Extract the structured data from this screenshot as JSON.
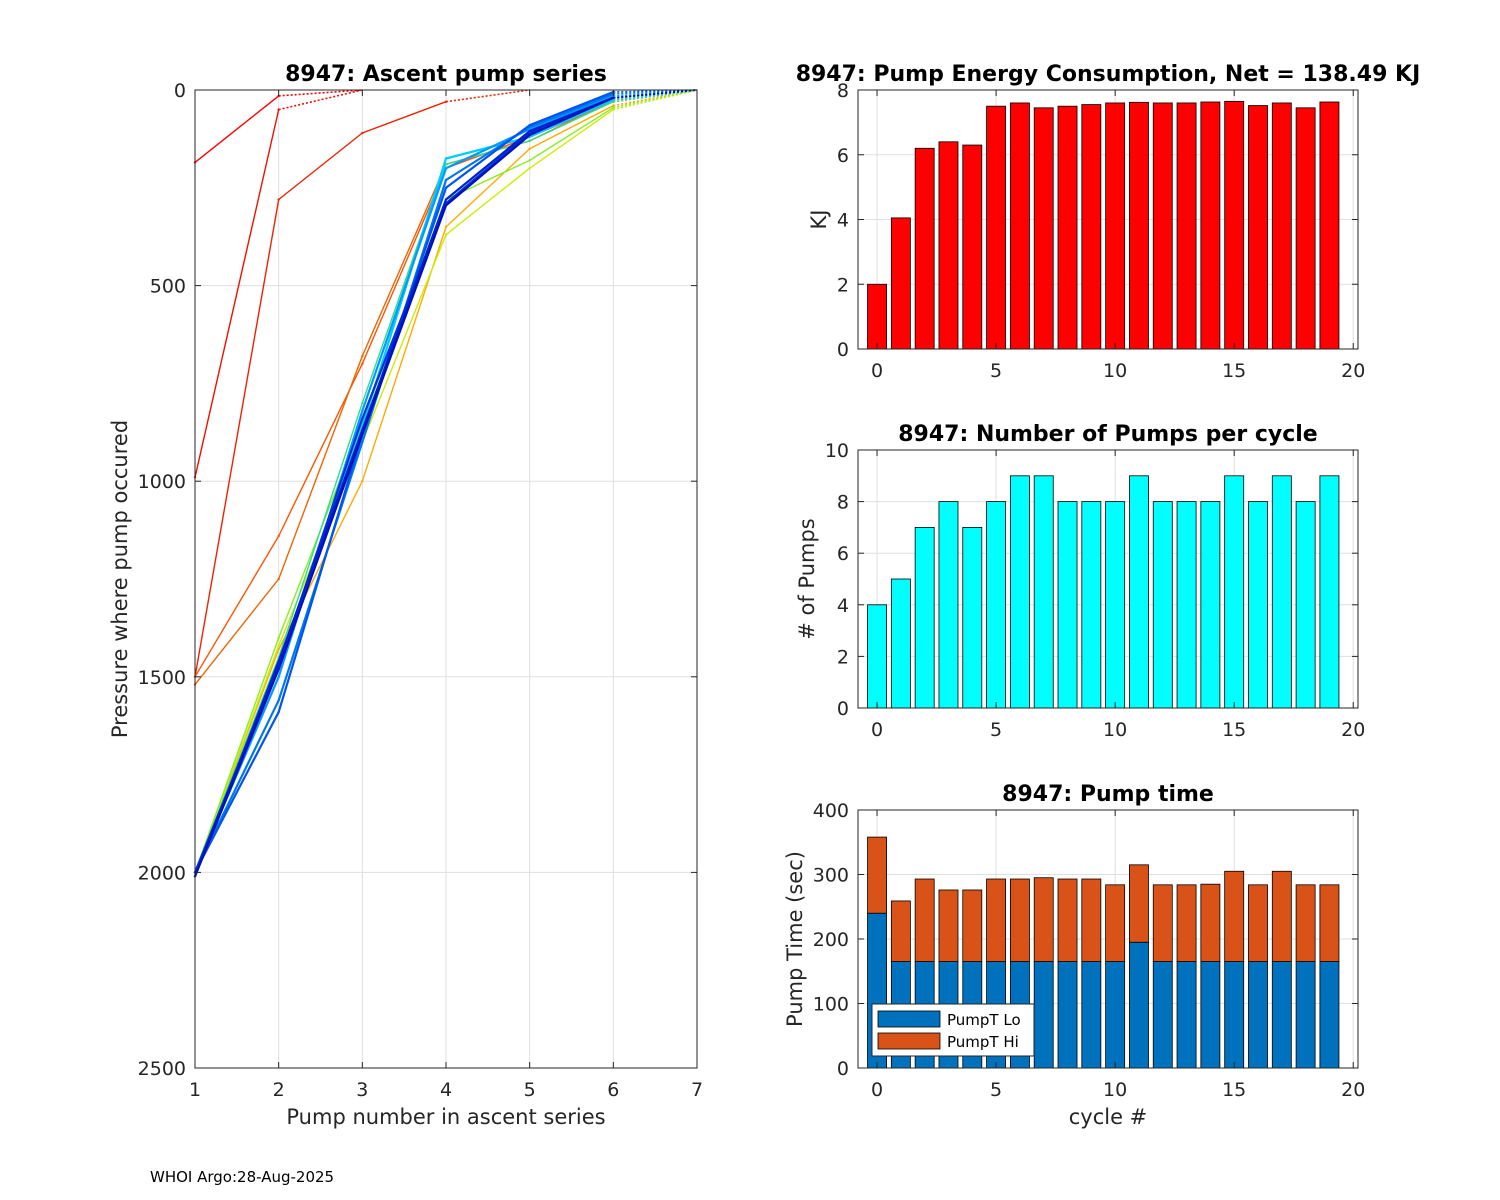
{
  "footer": "WHOI Argo:28-Aug-2025",
  "chart_data": [
    {
      "id": "ascent",
      "type": "line",
      "title": "8947: Ascent pump series",
      "xlabel": "Pump number in ascent series",
      "ylabel": "Pressure where pump occured",
      "xlim": [
        1,
        7
      ],
      "ylim": [
        0,
        2500
      ],
      "y_reversed": true,
      "grid": true,
      "xticks": [
        1,
        2,
        3,
        4,
        5,
        6,
        7
      ],
      "yticks": [
        0,
        500,
        1000,
        1500,
        2000,
        2500
      ],
      "series": [
        {
          "color": "#ff0000",
          "solid": [
            [
              1,
              185
            ],
            [
              2,
              15
            ]
          ],
          "dotted": [
            [
              2,
              15
            ],
            [
              3,
              0
            ]
          ]
        },
        {
          "color": "#ee1100",
          "solid": [
            [
              1,
              990
            ],
            [
              2,
              50
            ]
          ],
          "dotted": [
            [
              2,
              50
            ],
            [
              3,
              0
            ]
          ]
        },
        {
          "color": "#ee2200",
          "solid": [
            [
              1,
              1500
            ],
            [
              2,
              280
            ],
            [
              3,
              110
            ],
            [
              4,
              30
            ]
          ],
          "dotted": [
            [
              4,
              30
            ],
            [
              5,
              0
            ]
          ]
        },
        {
          "color": "#ff5500",
          "solid": [
            [
              1,
              1500
            ],
            [
              2,
              1140
            ],
            [
              3,
              700
            ],
            [
              4,
              200
            ],
            [
              5,
              120
            ],
            [
              6,
              30
            ]
          ],
          "dotted": [
            [
              6,
              30
            ],
            [
              7,
              0
            ]
          ]
        },
        {
          "color": "#ee6600",
          "solid": [
            [
              1,
              1520
            ],
            [
              2,
              1250
            ],
            [
              3,
              680
            ],
            [
              4,
              190
            ],
            [
              5,
              130
            ],
            [
              6,
              25
            ]
          ],
          "dotted": [
            [
              6,
              25
            ],
            [
              7,
              0
            ]
          ]
        },
        {
          "color": "#ffaa00",
          "solid": [
            [
              1,
              2000
            ],
            [
              2,
              1430
            ],
            [
              3,
              1000
            ],
            [
              4,
              350
            ],
            [
              5,
              150
            ],
            [
              6,
              40
            ]
          ],
          "dotted": [
            [
              6,
              40
            ],
            [
              7,
              0
            ]
          ]
        },
        {
          "color": "#ccee00",
          "solid": [
            [
              1,
              2000
            ],
            [
              2,
              1420
            ],
            [
              3,
              900
            ],
            [
              4,
              370
            ],
            [
              5,
              200
            ],
            [
              6,
              50
            ]
          ],
          "dotted": [
            [
              6,
              50
            ],
            [
              7,
              0
            ]
          ]
        },
        {
          "color": "#88ee22",
          "solid": [
            [
              1,
              2000
            ],
            [
              2,
              1400
            ],
            [
              3,
              850
            ],
            [
              4,
              280
            ],
            [
              5,
              180
            ],
            [
              6,
              45
            ]
          ],
          "dotted": [
            [
              6,
              45
            ],
            [
              7,
              0
            ]
          ]
        },
        {
          "color": "#33dd88",
          "solid": [
            [
              1,
              2000
            ],
            [
              2,
              1450
            ],
            [
              3,
              800
            ],
            [
              4,
              190
            ],
            [
              5,
              130
            ],
            [
              6,
              30
            ]
          ],
          "dotted": [
            [
              6,
              30
            ],
            [
              7,
              0
            ]
          ]
        },
        {
          "color": "#00ccff",
          "solid": [
            [
              1,
              2000
            ],
            [
              2,
              1480
            ],
            [
              3,
              860
            ],
            [
              4,
              175
            ],
            [
              5,
              120
            ],
            [
              6,
              25
            ]
          ],
          "dotted": [
            [
              6,
              25
            ],
            [
              7,
              0
            ]
          ]
        },
        {
          "color": "#0099ff",
          "solid": [
            [
              1,
              2000
            ],
            [
              2,
              1500
            ],
            [
              3,
              820
            ],
            [
              4,
              200
            ],
            [
              5,
              100
            ],
            [
              6,
              15
            ]
          ],
          "dotted": [
            [
              6,
              15
            ],
            [
              7,
              0
            ]
          ]
        },
        {
          "color": "#0077ee",
          "solid": [
            [
              1,
              2000
            ],
            [
              2,
              1560
            ],
            [
              3,
              900
            ],
            [
              4,
              230
            ],
            [
              5,
              95
            ],
            [
              6,
              10
            ]
          ],
          "dotted": [
            [
              6,
              10
            ],
            [
              7,
              0
            ]
          ]
        },
        {
          "color": "#0055ee",
          "solid": [
            [
              1,
              2000
            ],
            [
              2,
              1590
            ],
            [
              3,
              880
            ],
            [
              4,
              250
            ],
            [
              5,
              90
            ],
            [
              6,
              5
            ]
          ],
          "dotted": [
            [
              6,
              5
            ],
            [
              7,
              0
            ]
          ]
        },
        {
          "color": "#0033dd",
          "solid": [
            [
              1,
              2000
            ],
            [
              2,
              1470
            ],
            [
              3,
              840
            ],
            [
              4,
              290
            ],
            [
              5,
              110
            ],
            [
              6,
              20
            ]
          ],
          "dotted": [
            [
              6,
              20
            ],
            [
              7,
              0
            ]
          ]
        },
        {
          "color": "#0022cc",
          "solid": [
            [
              1,
              2010
            ],
            [
              2,
              1460
            ],
            [
              3,
              870
            ],
            [
              4,
              280
            ],
            [
              5,
              105
            ],
            [
              6,
              20
            ]
          ],
          "dotted": [
            [
              6,
              20
            ],
            [
              7,
              0
            ]
          ]
        },
        {
          "color": "#0011bb",
          "solid": [
            [
              1,
              2010
            ],
            [
              2,
              1480
            ],
            [
              3,
              880
            ],
            [
              4,
              295
            ],
            [
              5,
              115
            ],
            [
              6,
              20
            ]
          ],
          "dotted": [
            [
              6,
              20
            ],
            [
              7,
              0
            ]
          ]
        }
      ]
    },
    {
      "id": "energy",
      "type": "bar",
      "title": "8947: Pump Energy Consumption,  Net = 138.49 KJ",
      "xlabel": "",
      "ylabel": "KJ",
      "xlim": [
        -0.8,
        20.2
      ],
      "ylim": [
        0,
        8
      ],
      "grid": true,
      "color": "#ff0000",
      "xticks": [
        0,
        5,
        10,
        15,
        20
      ],
      "yticks": [
        0,
        2,
        4,
        6,
        8
      ],
      "x": [
        0,
        1,
        2,
        3,
        4,
        5,
        6,
        7,
        8,
        9,
        10,
        11,
        12,
        13,
        14,
        15,
        16,
        17,
        18,
        19
      ],
      "values": [
        2.0,
        4.05,
        6.2,
        6.4,
        6.3,
        7.5,
        7.6,
        7.45,
        7.5,
        7.55,
        7.6,
        7.62,
        7.6,
        7.6,
        7.63,
        7.65,
        7.52,
        7.6,
        7.45,
        7.63
      ]
    },
    {
      "id": "pumps",
      "type": "bar",
      "title": "8947: Number of Pumps per cycle",
      "xlabel": "",
      "ylabel": "# of Pumps",
      "xlim": [
        -0.8,
        20.2
      ],
      "ylim": [
        0,
        10
      ],
      "grid": true,
      "color": "#00ffff",
      "xticks": [
        0,
        5,
        10,
        15,
        20
      ],
      "yticks": [
        0,
        2,
        4,
        6,
        8,
        10
      ],
      "x": [
        0,
        1,
        2,
        3,
        4,
        5,
        6,
        7,
        8,
        9,
        10,
        11,
        12,
        13,
        14,
        15,
        16,
        17,
        18,
        19
      ],
      "values": [
        4,
        5,
        7,
        8,
        7,
        8,
        9,
        9,
        8,
        8,
        8,
        9,
        8,
        8,
        8,
        9,
        8,
        9,
        8,
        9
      ]
    },
    {
      "id": "pumptime",
      "type": "bar",
      "stacked": true,
      "title": "8947: Pump time",
      "xlabel": "cycle #",
      "ylabel": "Pump Time (sec)",
      "xlim": [
        -0.8,
        20.2
      ],
      "ylim": [
        0,
        400
      ],
      "grid": true,
      "xticks": [
        0,
        5,
        10,
        15,
        20
      ],
      "yticks": [
        0,
        100,
        200,
        300,
        400
      ],
      "x": [
        0,
        1,
        2,
        3,
        4,
        5,
        6,
        7,
        8,
        9,
        10,
        11,
        12,
        13,
        14,
        15,
        16,
        17,
        18,
        19
      ],
      "legend": "bottom-left",
      "series": [
        {
          "name": "PumpT Lo",
          "color": "#0072bd",
          "values": [
            240,
            165,
            165,
            165,
            165,
            165,
            165,
            165,
            165,
            165,
            165,
            195,
            165,
            165,
            165,
            165,
            165,
            165,
            165,
            165
          ]
        },
        {
          "name": "PumpT Hi",
          "color": "#d95319",
          "values": [
            118,
            94,
            128,
            111,
            111,
            128,
            128,
            130,
            128,
            128,
            119,
            120,
            119,
            119,
            120,
            140,
            119,
            140,
            119,
            119
          ]
        }
      ]
    }
  ]
}
